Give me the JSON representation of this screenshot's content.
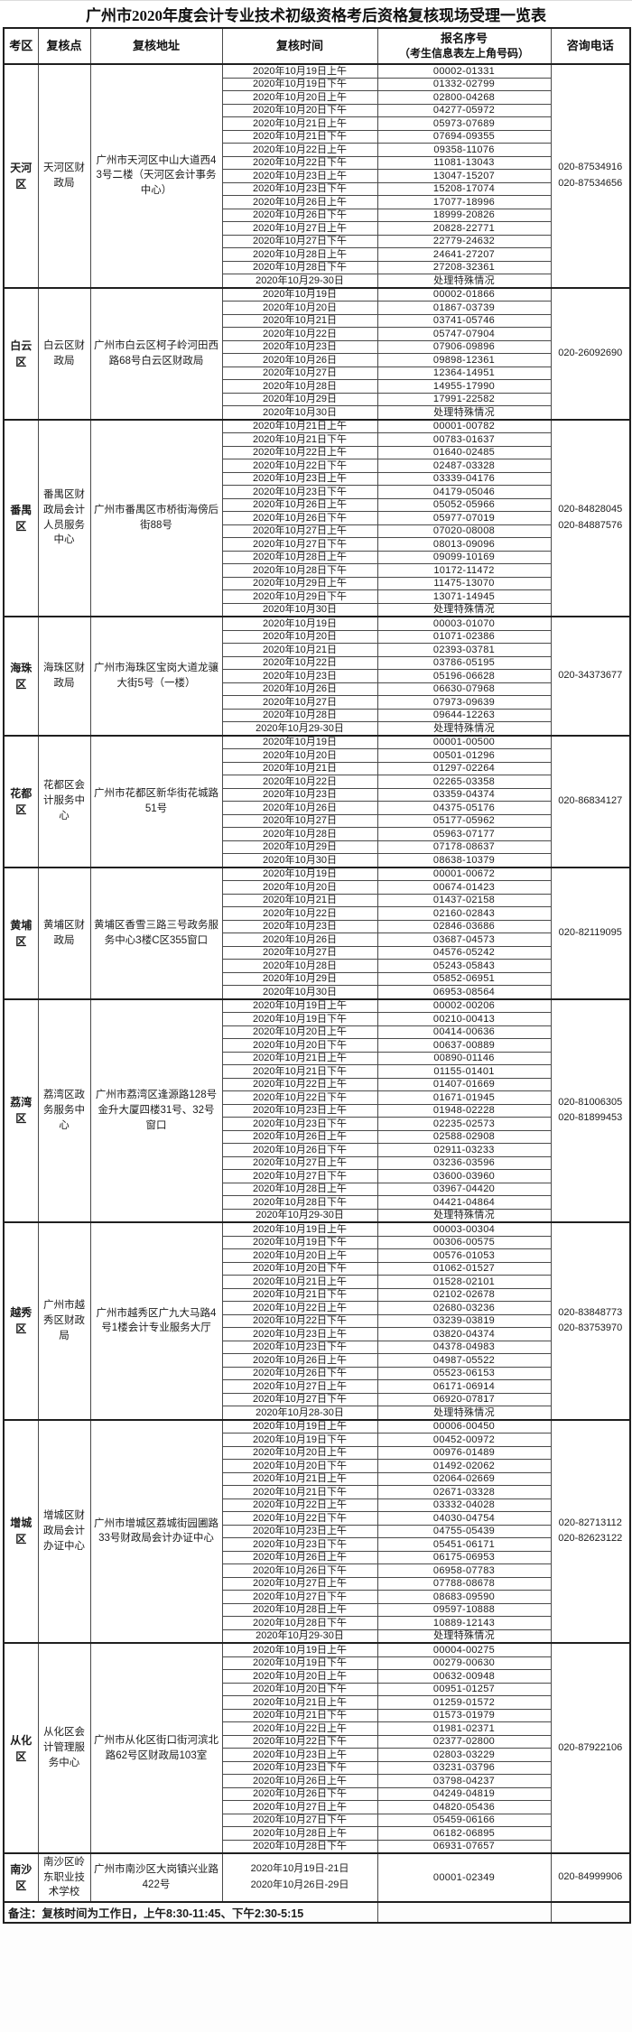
{
  "title": "广州市2020年度会计专业技术初级资格考后资格复核现场受理一览表",
  "table": {
    "columns": [
      {
        "label": "考区"
      },
      {
        "label": "复核点"
      },
      {
        "label": "复核地址"
      },
      {
        "label": "复核时间"
      },
      {
        "label": "报名序号",
        "sub": "（考生信息表左上角号码）"
      },
      {
        "label": "咨询电话"
      }
    ],
    "districts": [
      {
        "area": "天河区",
        "point": "天河区财政局",
        "address": "广州市天河区中山大道西43号二楼（天河区会计事务中心）",
        "phones": [
          "020-87534916",
          "020-87534656"
        ],
        "rows": [
          [
            "2020年10月19日上午",
            "00002-01331"
          ],
          [
            "2020年10月19日下午",
            "01332-02799"
          ],
          [
            "2020年10月20日上午",
            "02800-04268"
          ],
          [
            "2020年10月20日下午",
            "04277-05972"
          ],
          [
            "2020年10月21日上午",
            "05973-07689"
          ],
          [
            "2020年10月21日下午",
            "07694-09355"
          ],
          [
            "2020年10月22日上午",
            "09358-11076"
          ],
          [
            "2020年10月22日下午",
            "11081-13043"
          ],
          [
            "2020年10月23日上午",
            "13047-15207"
          ],
          [
            "2020年10月23日下午",
            "15208-17074"
          ],
          [
            "2020年10月26日上午",
            "17077-18996"
          ],
          [
            "2020年10月26日下午",
            "18999-20826"
          ],
          [
            "2020年10月27日上午",
            "20828-22771"
          ],
          [
            "2020年10月27日下午",
            "22779-24632"
          ],
          [
            "2020年10月28日上午",
            "24641-27207"
          ],
          [
            "2020年10月28日下午",
            "27208-32361"
          ],
          [
            "2020年10月29-30日",
            "处理特殊情况"
          ]
        ]
      },
      {
        "area": "白云区",
        "point": "白云区财政局",
        "address": "广州市白云区柯子岭河田西路68号白云区财政局",
        "phones": [
          "020-26092690"
        ],
        "rows": [
          [
            "2020年10月19日",
            "00002-01866"
          ],
          [
            "2020年10月20日",
            "01867-03739"
          ],
          [
            "2020年10月21日",
            "03741-05746"
          ],
          [
            "2020年10月22日",
            "05747-07904"
          ],
          [
            "2020年10月23日",
            "07906-09896"
          ],
          [
            "2020年10月26日",
            "09898-12361"
          ],
          [
            "2020年10月27日",
            "12364-14951"
          ],
          [
            "2020年10月28日",
            "14955-17990"
          ],
          [
            "2020年10月29日",
            "17991-22582"
          ],
          [
            "2020年10月30日",
            "处理特殊情况"
          ]
        ]
      },
      {
        "area": "番禺区",
        "point": "番禺区财政局会计人员服务中心",
        "address": "广州市番禺区市桥街海傍后街88号",
        "phones": [
          "020-84828045",
          "020-84887576"
        ],
        "rows": [
          [
            "2020年10月21日上午",
            "00001-00782"
          ],
          [
            "2020年10月21日下午",
            "00783-01637"
          ],
          [
            "2020年10月22日上午",
            "01640-02485"
          ],
          [
            "2020年10月22日下午",
            "02487-03328"
          ],
          [
            "2020年10月23日上午",
            "03339-04176"
          ],
          [
            "2020年10月23日下午",
            "04179-05046"
          ],
          [
            "2020年10月26日上午",
            "05052-05966"
          ],
          [
            "2020年10月26日下午",
            "05977-07019"
          ],
          [
            "2020年10月27日上午",
            "07020-08008"
          ],
          [
            "2020年10月27日下午",
            "08013-09096"
          ],
          [
            "2020年10月28日上午",
            "09099-10169"
          ],
          [
            "2020年10月28日下午",
            "10172-11472"
          ],
          [
            "2020年10月29日上午",
            "11475-13070"
          ],
          [
            "2020年10月29日下午",
            "13071-14945"
          ],
          [
            "2020年10月30日",
            "处理特殊情况"
          ]
        ]
      },
      {
        "area": "海珠区",
        "point": "海珠区财政局",
        "address": "广州市海珠区宝岗大道龙骧大街5号（一楼）",
        "phones": [
          "020-34373677"
        ],
        "rows": [
          [
            "2020年10月19日",
            "00003-01070"
          ],
          [
            "2020年10月20日",
            "01071-02386"
          ],
          [
            "2020年10月21日",
            "02393-03781"
          ],
          [
            "2020年10月22日",
            "03786-05195"
          ],
          [
            "2020年10月23日",
            "05196-06628"
          ],
          [
            "2020年10月26日",
            "06630-07968"
          ],
          [
            "2020年10月27日",
            "07973-09639"
          ],
          [
            "2020年10月28日",
            "09644-12263"
          ],
          [
            "2020年10月29-30日",
            "处理特殊情况"
          ]
        ]
      },
      {
        "area": "花都区",
        "point": "花都区会计服务中心",
        "address": "广州市花都区新华街花城路51号",
        "phones": [
          "020-86834127"
        ],
        "rows": [
          [
            "2020年10月19日",
            "00001-00500"
          ],
          [
            "2020年10月20日",
            "00501-01296"
          ],
          [
            "2020年10月21日",
            "01297-02264"
          ],
          [
            "2020年10月22日",
            "02265-03358"
          ],
          [
            "2020年10月23日",
            "03359-04374"
          ],
          [
            "2020年10月26日",
            "04375-05176"
          ],
          [
            "2020年10月27日",
            "05177-05962"
          ],
          [
            "2020年10月28日",
            "05963-07177"
          ],
          [
            "2020年10月29日",
            "07178-08637"
          ],
          [
            "2020年10月30日",
            "08638-10379"
          ]
        ]
      },
      {
        "area": "黄埔区",
        "point": "黄埔区财政局",
        "address": "黄埔区香雪三路三号政务服务中心3楼C区355窗口",
        "phones": [
          "020-82119095"
        ],
        "rows": [
          [
            "2020年10月19日",
            "00001-00672"
          ],
          [
            "2020年10月20日",
            "00674-01423"
          ],
          [
            "2020年10月21日",
            "01437-02158"
          ],
          [
            "2020年10月22日",
            "02160-02843"
          ],
          [
            "2020年10月23日",
            "02846-03686"
          ],
          [
            "2020年10月26日",
            "03687-04573"
          ],
          [
            "2020年10月27日",
            "04576-05242"
          ],
          [
            "2020年10月28日",
            "05243-05843"
          ],
          [
            "2020年10月29日",
            "05852-06951"
          ],
          [
            "2020年10月30日",
            "06953-08564"
          ]
        ]
      },
      {
        "area": "荔湾区",
        "point": "荔湾区政务服务中心",
        "address": "广州市荔湾区逢源路128号金升大厦四楼31号、32号窗口",
        "phones": [
          "020-81006305",
          "020-81899453"
        ],
        "rows": [
          [
            "2020年10月19日上午",
            "00002-00206"
          ],
          [
            "2020年10月19日下午",
            "00210-00413"
          ],
          [
            "2020年10月20日上午",
            "00414-00636"
          ],
          [
            "2020年10月20日下午",
            "00637-00889"
          ],
          [
            "2020年10月21日上午",
            "00890-01146"
          ],
          [
            "2020年10月21日下午",
            "01155-01401"
          ],
          [
            "2020年10月22日上午",
            "01407-01669"
          ],
          [
            "2020年10月22日下午",
            "01671-01945"
          ],
          [
            "2020年10月23日上午",
            "01948-02228"
          ],
          [
            "2020年10月23日下午",
            "02235-02573"
          ],
          [
            "2020年10月26日上午",
            "02588-02908"
          ],
          [
            "2020年10月26日下午",
            "02911-03233"
          ],
          [
            "2020年10月27日上午",
            "03236-03596"
          ],
          [
            "2020年10月27日下午",
            "03600-03960"
          ],
          [
            "2020年10月28日上午",
            "03967-04420"
          ],
          [
            "2020年10月28日下午",
            "04421-04864"
          ],
          [
            "2020年10月29-30日",
            "处理特殊情况"
          ]
        ]
      },
      {
        "area": "越秀区",
        "point": "广州市越秀区财政局",
        "address": "广州市越秀区广九大马路4号1楼会计专业服务大厅",
        "phones": [
          "020-83848773",
          "020-83753970"
        ],
        "rows": [
          [
            "2020年10月19日上午",
            "00003-00304"
          ],
          [
            "2020年10月19日下午",
            "00306-00575"
          ],
          [
            "2020年10月20日上午",
            "00576-01053"
          ],
          [
            "2020年10月20日下午",
            "01062-01527"
          ],
          [
            "2020年10月21日上午",
            "01528-02101"
          ],
          [
            "2020年10月21日下午",
            "02102-02678"
          ],
          [
            "2020年10月22日上午",
            "02680-03236"
          ],
          [
            "2020年10月22日下午",
            "03239-03819"
          ],
          [
            "2020年10月23日上午",
            "03820-04374"
          ],
          [
            "2020年10月23日下午",
            "04378-04983"
          ],
          [
            "2020年10月26日上午",
            "04987-05522"
          ],
          [
            "2020年10月26日下午",
            "05523-06153"
          ],
          [
            "2020年10月27日上午",
            "06171-06914"
          ],
          [
            "2020年10月27日下午",
            "06920-07817"
          ],
          [
            "2020年10月28-30日",
            "处理特殊情况"
          ]
        ]
      },
      {
        "area": "增城区",
        "point": "增城区财政局会计办证中心",
        "address": "广州市增城区荔城街园圃路33号财政局会计办证中心",
        "phones": [
          "020-82713112",
          "020-82623122"
        ],
        "rows": [
          [
            "2020年10月19日上午",
            "00006-00450"
          ],
          [
            "2020年10月19日下午",
            "00452-00972"
          ],
          [
            "2020年10月20日上午",
            "00976-01489"
          ],
          [
            "2020年10月20日下午",
            "01492-02062"
          ],
          [
            "2020年10月21日上午",
            "02064-02669"
          ],
          [
            "2020年10月21日下午",
            "02671-03328"
          ],
          [
            "2020年10月22日上午",
            "03332-04028"
          ],
          [
            "2020年10月22日下午",
            "04030-04754"
          ],
          [
            "2020年10月23日上午",
            "04755-05439"
          ],
          [
            "2020年10月23日下午",
            "05451-06171"
          ],
          [
            "2020年10月26日上午",
            "06175-06953"
          ],
          [
            "2020年10月26日下午",
            "06958-07783"
          ],
          [
            "2020年10月27日上午",
            "07788-08678"
          ],
          [
            "2020年10月27日下午",
            "08683-09590"
          ],
          [
            "2020年10月28日上午",
            "09597-10888"
          ],
          [
            "2020年10月28日下午",
            "10889-12143"
          ],
          [
            "2020年10月29-30日",
            "处理特殊情况"
          ]
        ]
      },
      {
        "area": "从化区",
        "point": "从化区会计管理服务中心",
        "address": "广州市从化区街口街河滨北路62号区财政局103室",
        "phones": [
          "020-87922106"
        ],
        "rows": [
          [
            "2020年10月19日上午",
            "00004-00275"
          ],
          [
            "2020年10月19日下午",
            "00279-00630"
          ],
          [
            "2020年10月20日上午",
            "00632-00948"
          ],
          [
            "2020年10月20日下午",
            "00951-01257"
          ],
          [
            "2020年10月21日上午",
            "01259-01572"
          ],
          [
            "2020年10月21日下午",
            "01573-01979"
          ],
          [
            "2020年10月22日上午",
            "01981-02371"
          ],
          [
            "2020年10月22日下午",
            "02377-02800"
          ],
          [
            "2020年10月23日上午",
            "02803-03229"
          ],
          [
            "2020年10月23日下午",
            "03231-03796"
          ],
          [
            "2020年10月26日上午",
            "03798-04237"
          ],
          [
            "2020年10月26日下午",
            "04249-04819"
          ],
          [
            "2020年10月27日上午",
            "04820-05436"
          ],
          [
            "2020年10月27日下午",
            "05459-06166"
          ],
          [
            "2020年10月28日上午",
            "06182-06895"
          ],
          [
            "2020年10月28日下午",
            "06931-07657"
          ]
        ]
      },
      {
        "area": "南沙区",
        "point": "南沙区岭东职业技术学校",
        "address": "广州市南沙区大岗镇兴业路422号",
        "phones": [
          "020-84999906"
        ],
        "tall": true,
        "rows": [
          [
            [
              "2020年10月19日-21日",
              "2020年10月26日-29日"
            ],
            "00001-02349"
          ]
        ]
      }
    ]
  },
  "footer": {
    "note": "备注：复核时间为工作日，上午8:30-11:45、下午2:30-5:15"
  }
}
